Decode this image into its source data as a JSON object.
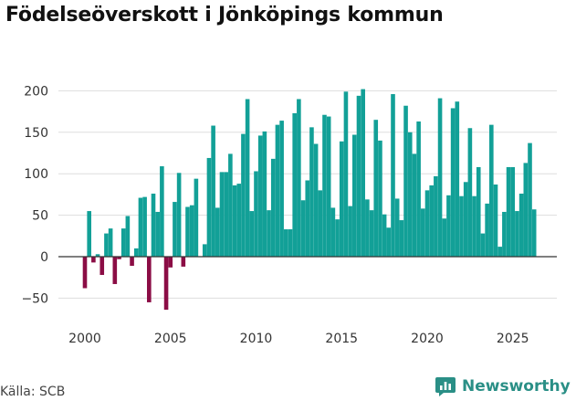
{
  "title": "Födelseöverskott i Jönköpings kommun",
  "source": "Källa: SCB",
  "brand": {
    "name": "Newsworthy",
    "icon": "newsworthy-logo-icon"
  },
  "colors": {
    "positive": "#12a097",
    "negative": "#8b0d45",
    "grid": "#dddddd",
    "zero": "#333333",
    "brand": "#2a8f86"
  },
  "chart_data": {
    "type": "bar",
    "title": "Födelseöverskott i Jönköpings kommun",
    "xlabel": "",
    "ylabel": "",
    "ylim": [
      -65,
      205
    ],
    "yticks": [
      -50,
      0,
      50,
      100,
      150,
      200
    ],
    "ytick_labels": [
      "−50",
      "0",
      "50",
      "100",
      "150",
      "200"
    ],
    "xticks": [
      2000,
      2005,
      2010,
      2015,
      2020,
      2025
    ],
    "xtick_labels": [
      "2000",
      "2005",
      "2010",
      "2015",
      "2020",
      "2025"
    ],
    "x_start": 2000.0,
    "x_step": 0.25,
    "grid": true,
    "values": [
      -38,
      55,
      -7,
      3,
      -22,
      28,
      34,
      -33,
      -3,
      34,
      49,
      -11,
      10,
      71,
      72,
      -55,
      76,
      54,
      109,
      -64,
      -13,
      66,
      101,
      -12,
      60,
      62,
      94,
      0,
      15,
      119,
      158,
      59,
      102,
      102,
      124,
      86,
      88,
      148,
      190,
      55,
      103,
      146,
      151,
      56,
      118,
      159,
      164,
      33,
      33,
      173,
      190,
      68,
      92,
      156,
      136,
      80,
      171,
      169,
      59,
      45,
      139,
      199,
      61,
      147,
      194,
      202,
      69,
      56,
      165,
      140,
      51,
      35,
      196,
      70,
      44,
      182,
      150,
      124,
      163,
      58,
      80,
      86,
      97,
      191,
      46,
      74,
      179,
      187,
      73,
      90,
      155,
      73,
      108,
      28,
      64,
      159,
      87,
      12,
      54,
      108,
      108,
      55,
      76,
      113,
      137,
      57
    ]
  }
}
